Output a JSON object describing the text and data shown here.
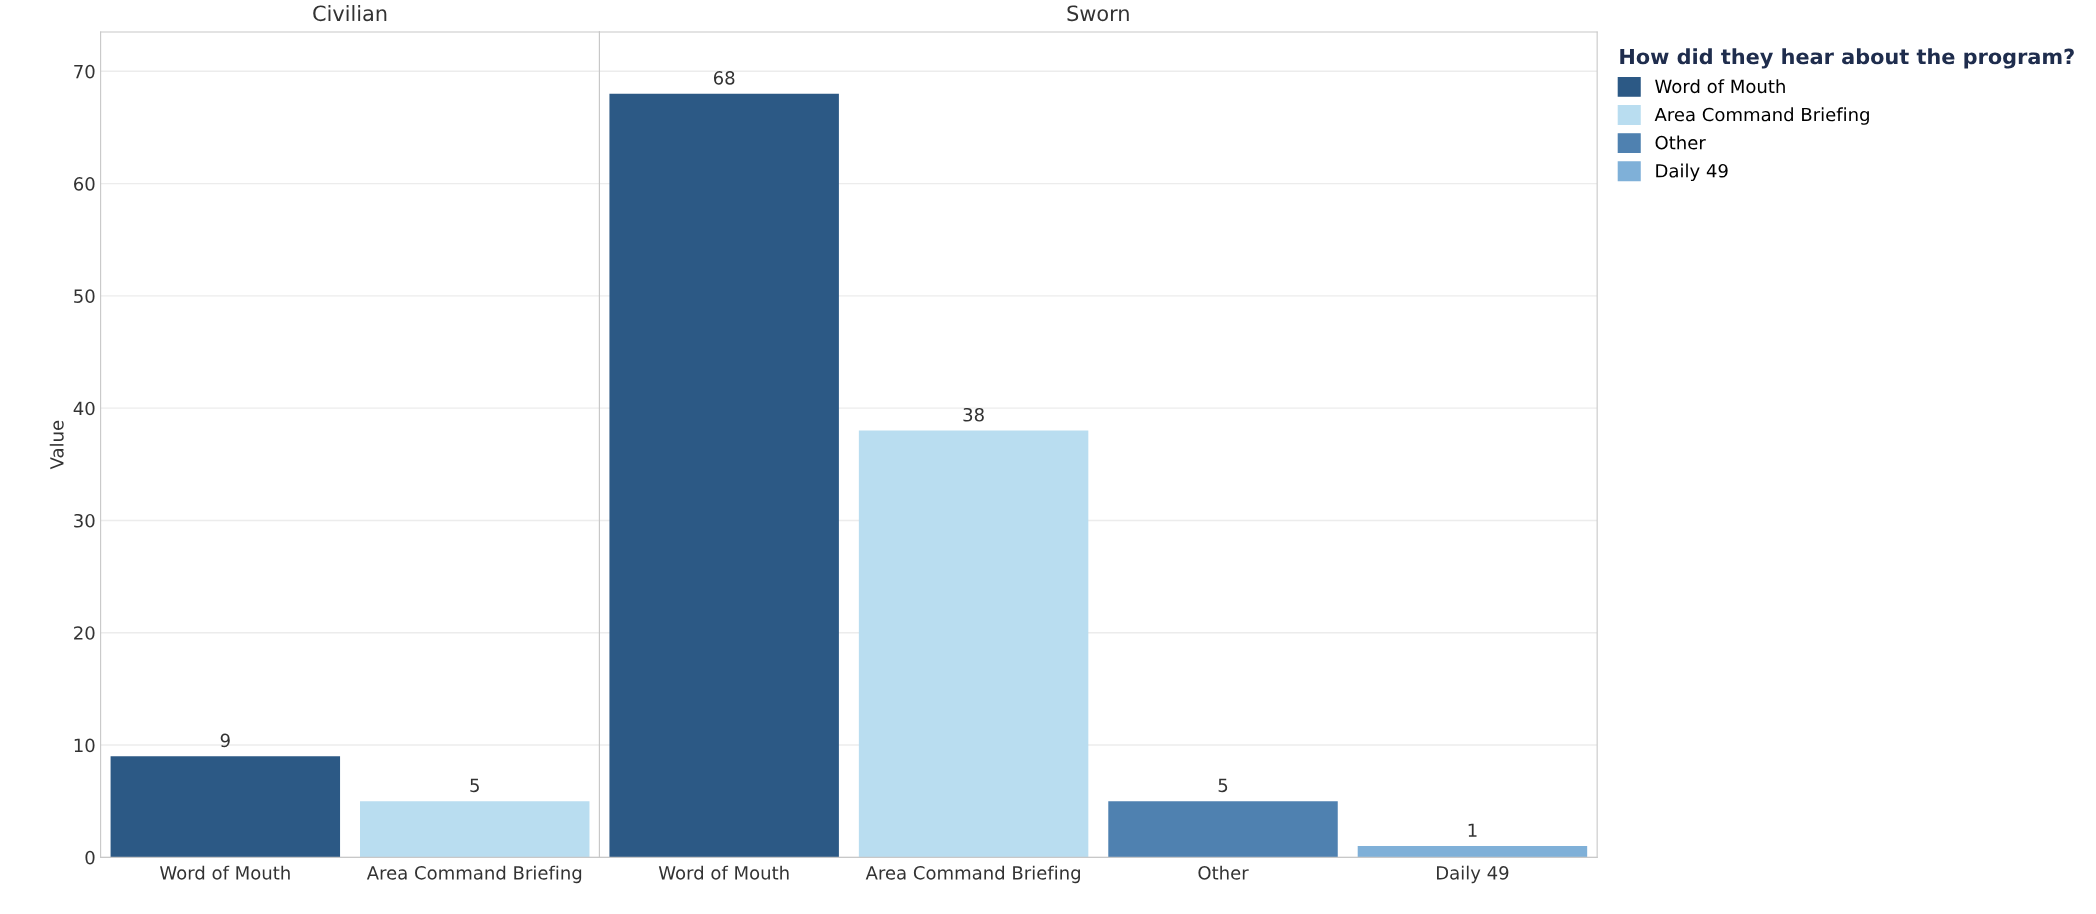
{
  "chart_data": [
    {
      "type": "bar",
      "title": "Civilian",
      "ylabel": "Value",
      "categories": [
        "Word of Mouth",
        "Area Command Briefing"
      ],
      "values": [
        9,
        5
      ],
      "colors": [
        "#2c5985",
        "#b9ddf0"
      ],
      "ylim": [
        0,
        73.5
      ],
      "yticks": [
        0,
        10,
        20,
        30,
        40,
        50,
        60,
        70
      ],
      "grid": "y",
      "data_labels": true
    },
    {
      "type": "bar",
      "title": "Sworn",
      "categories": [
        "Word of Mouth",
        "Area Command Briefing",
        "Other",
        "Daily 49"
      ],
      "series": [
        {
          "name": "Word of Mouth",
          "color": "#2c5985",
          "values": [
            68,
            null,
            null,
            null
          ]
        },
        {
          "name": "Area Command Briefing",
          "color": "#b9ddf0",
          "values": [
            null,
            38,
            null,
            null
          ]
        },
        {
          "name": "Other",
          "color": "#4f81b0",
          "values": [
            null,
            null,
            5,
            null
          ]
        },
        {
          "name": "Daily 49",
          "color": "#7fb0d8",
          "values": [
            null,
            null,
            null,
            1
          ]
        }
      ],
      "ylim": [
        0,
        73.5
      ],
      "yticks": [
        0,
        10,
        20,
        30,
        40,
        50,
        60,
        70
      ],
      "tick_labels": "x",
      "grid": "y",
      "data_labels": true,
      "legend": "top right",
      "legend_title": "How did they hear about the program?"
    }
  ]
}
